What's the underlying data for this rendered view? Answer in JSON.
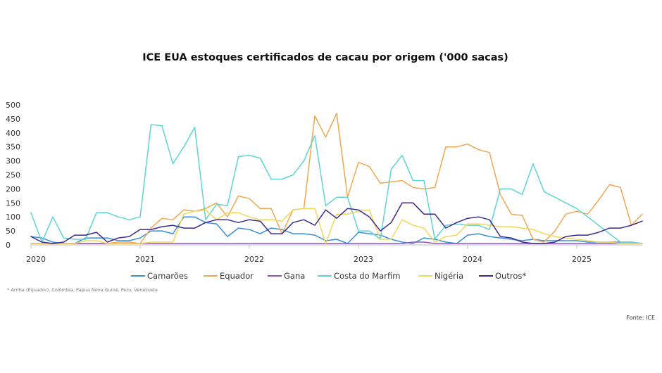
{
  "chart_data": {
    "type": "line",
    "title": "ICE EUA estoques certificados de cacau por origem ('000 sacas)",
    "xlabel": "",
    "ylabel": "",
    "ylim": [
      0,
      500
    ],
    "yticks": [
      0,
      50,
      100,
      150,
      200,
      250,
      300,
      350,
      400,
      450,
      500
    ],
    "xlim": [
      2020.0,
      2025.6
    ],
    "xticks": [
      2020,
      2021,
      2022,
      2023,
      2024,
      2025
    ],
    "xtick_labels": [
      "2020",
      "2021",
      "2022",
      "2023",
      "2024",
      "2025"
    ],
    "grid": false,
    "legend_position": "bottom",
    "series": [
      {
        "name": "Camarões",
        "color": "#3a8fd9",
        "x": [
          2020.0,
          2020.1,
          2020.2,
          2020.3,
          2020.4,
          2020.5,
          2020.6,
          2020.7,
          2020.8,
          2020.9,
          2021.0,
          2021.1,
          2021.2,
          2021.3,
          2021.4,
          2021.5,
          2021.6,
          2021.7,
          2021.8,
          2021.9,
          2022.0,
          2022.1,
          2022.2,
          2022.3,
          2022.4,
          2022.5,
          2022.6,
          2022.7,
          2022.8,
          2022.9,
          2023.0,
          2023.1,
          2023.2,
          2023.3,
          2023.4,
          2023.5,
          2023.6,
          2023.7,
          2023.8,
          2023.9,
          2024.0,
          2024.1,
          2024.2,
          2024.3,
          2024.4,
          2024.5,
          2024.6,
          2024.7,
          2024.8,
          2024.9,
          2025.0,
          2025.1,
          2025.2,
          2025.3,
          2025.4,
          2025.5,
          2025.6
        ],
        "values": [
          30,
          25,
          10,
          5,
          5,
          25,
          25,
          25,
          15,
          15,
          25,
          50,
          50,
          40,
          100,
          100,
          80,
          75,
          30,
          60,
          55,
          40,
          60,
          55,
          40,
          40,
          35,
          15,
          20,
          5,
          45,
          40,
          35,
          20,
          10,
          5,
          25,
          20,
          10,
          5,
          35,
          40,
          30,
          25,
          20,
          15,
          20,
          15,
          15,
          15,
          15,
          10,
          10,
          10,
          10,
          10,
          5
        ]
      },
      {
        "name": "Equador",
        "color": "#f0a752",
        "x": [
          2020.0,
          2020.1,
          2020.2,
          2020.3,
          2020.4,
          2020.5,
          2020.6,
          2020.7,
          2020.8,
          2020.9,
          2021.0,
          2021.1,
          2021.2,
          2021.3,
          2021.4,
          2021.5,
          2021.6,
          2021.7,
          2021.8,
          2021.9,
          2022.0,
          2022.1,
          2022.2,
          2022.3,
          2022.4,
          2022.5,
          2022.6,
          2022.7,
          2022.8,
          2022.9,
          2023.0,
          2023.1,
          2023.2,
          2023.3,
          2023.4,
          2023.5,
          2023.6,
          2023.7,
          2023.8,
          2023.9,
          2024.0,
          2024.1,
          2024.2,
          2024.3,
          2024.4,
          2024.5,
          2024.6,
          2024.7,
          2024.8,
          2024.9,
          2025.0,
          2025.1,
          2025.2,
          2025.3,
          2025.4,
          2025.5,
          2025.6
        ],
        "values": [
          5,
          5,
          5,
          5,
          5,
          5,
          5,
          5,
          10,
          10,
          5,
          60,
          95,
          90,
          125,
          120,
          130,
          150,
          100,
          175,
          165,
          130,
          130,
          40,
          125,
          130,
          460,
          385,
          470,
          170,
          295,
          280,
          220,
          225,
          230,
          205,
          200,
          205,
          350,
          350,
          360,
          340,
          330,
          180,
          110,
          105,
          20,
          10,
          50,
          110,
          120,
          110,
          160,
          215,
          205,
          70,
          110
        ]
      },
      {
        "name": "Gana",
        "color": "#8a56c2",
        "x": [
          2020.0,
          2020.1,
          2020.2,
          2020.3,
          2020.4,
          2020.5,
          2020.6,
          2020.7,
          2020.8,
          2020.9,
          2021.0,
          2021.1,
          2021.2,
          2021.3,
          2021.4,
          2021.5,
          2021.6,
          2021.7,
          2021.8,
          2021.9,
          2022.0,
          2022.1,
          2022.2,
          2022.3,
          2022.4,
          2022.5,
          2022.6,
          2022.7,
          2022.8,
          2022.9,
          2023.0,
          2023.1,
          2023.2,
          2023.3,
          2023.4,
          2023.5,
          2023.6,
          2023.7,
          2023.8,
          2023.9,
          2024.0,
          2024.1,
          2024.2,
          2024.3,
          2024.4,
          2024.5,
          2024.6,
          2024.7,
          2024.8,
          2024.9,
          2025.0,
          2025.1,
          2025.2,
          2025.3,
          2025.4,
          2025.5,
          2025.6
        ],
        "values": [
          5,
          5,
          5,
          5,
          5,
          5,
          5,
          5,
          5,
          5,
          5,
          5,
          5,
          5,
          5,
          5,
          5,
          5,
          5,
          5,
          5,
          5,
          5,
          5,
          5,
          5,
          5,
          5,
          5,
          5,
          5,
          5,
          5,
          5,
          5,
          10,
          10,
          5,
          5,
          5,
          5,
          5,
          5,
          5,
          5,
          5,
          5,
          5,
          5,
          5,
          5,
          5,
          5,
          5,
          5,
          5,
          5
        ]
      },
      {
        "name": "Costa do Marfim",
        "color": "#5fd3d6",
        "x": [
          2020.0,
          2020.1,
          2020.2,
          2020.3,
          2020.4,
          2020.5,
          2020.6,
          2020.7,
          2020.8,
          2020.9,
          2021.0,
          2021.1,
          2021.2,
          2021.3,
          2021.4,
          2021.5,
          2021.6,
          2021.7,
          2021.8,
          2021.9,
          2022.0,
          2022.1,
          2022.2,
          2022.3,
          2022.4,
          2022.5,
          2022.6,
          2022.7,
          2022.8,
          2022.9,
          2023.0,
          2023.1,
          2023.2,
          2023.3,
          2023.4,
          2023.5,
          2023.6,
          2023.7,
          2023.8,
          2023.9,
          2024.0,
          2024.1,
          2024.2,
          2024.3,
          2024.4,
          2024.5,
          2024.6,
          2024.7,
          2024.8,
          2024.9,
          2025.0,
          2025.1,
          2025.2,
          2025.3,
          2025.4,
          2025.5,
          2025.6
        ],
        "values": [
          115,
          10,
          100,
          25,
          20,
          20,
          115,
          115,
          100,
          90,
          100,
          430,
          425,
          290,
          350,
          420,
          90,
          145,
          140,
          315,
          320,
          310,
          235,
          235,
          250,
          300,
          390,
          140,
          170,
          170,
          50,
          50,
          20,
          270,
          320,
          230,
          230,
          20,
          70,
          75,
          70,
          70,
          55,
          200,
          200,
          180,
          290,
          190,
          170,
          150,
          130,
          100,
          70,
          40,
          10,
          10,
          5
        ]
      },
      {
        "name": "Nigéria",
        "color": "#f5d65a",
        "x": [
          2020.0,
          2020.1,
          2020.2,
          2020.3,
          2020.4,
          2020.5,
          2020.6,
          2020.7,
          2020.8,
          2020.9,
          2021.0,
          2021.1,
          2021.2,
          2021.3,
          2021.4,
          2021.5,
          2021.6,
          2021.7,
          2021.8,
          2021.9,
          2022.0,
          2022.1,
          2022.2,
          2022.3,
          2022.4,
          2022.5,
          2022.6,
          2022.7,
          2022.8,
          2022.9,
          2023.0,
          2023.1,
          2023.2,
          2023.3,
          2023.4,
          2023.5,
          2023.6,
          2023.7,
          2023.8,
          2023.9,
          2024.0,
          2024.1,
          2024.2,
          2024.3,
          2024.4,
          2024.5,
          2024.6,
          2024.7,
          2024.8,
          2024.9,
          2025.0,
          2025.1,
          2025.2,
          2025.3,
          2025.4,
          2025.5,
          2025.6
        ],
        "values": [
          5,
          5,
          5,
          5,
          5,
          15,
          15,
          5,
          5,
          5,
          5,
          10,
          10,
          10,
          110,
          120,
          125,
          90,
          115,
          115,
          100,
          90,
          90,
          85,
          125,
          130,
          130,
          5,
          110,
          110,
          120,
          125,
          20,
          20,
          90,
          70,
          60,
          10,
          30,
          35,
          75,
          75,
          70,
          65,
          65,
          60,
          55,
          40,
          30,
          25,
          20,
          15,
          10,
          10,
          5,
          5,
          5
        ]
      },
      {
        "name": "Outros*",
        "color": "#3b2b8f",
        "x": [
          2020.0,
          2020.1,
          2020.2,
          2020.3,
          2020.4,
          2020.5,
          2020.6,
          2020.7,
          2020.8,
          2020.9,
          2021.0,
          2021.1,
          2021.2,
          2021.3,
          2021.4,
          2021.5,
          2021.6,
          2021.7,
          2021.8,
          2021.9,
          2022.0,
          2022.1,
          2022.2,
          2022.3,
          2022.4,
          2022.5,
          2022.6,
          2022.7,
          2022.8,
          2022.9,
          2023.0,
          2023.1,
          2023.2,
          2023.3,
          2023.4,
          2023.5,
          2023.6,
          2023.7,
          2023.8,
          2023.9,
          2024.0,
          2024.1,
          2024.2,
          2024.3,
          2024.4,
          2024.5,
          2024.6,
          2024.7,
          2024.8,
          2024.9,
          2025.0,
          2025.1,
          2025.2,
          2025.3,
          2025.4,
          2025.5,
          2025.6
        ],
        "values": [
          30,
          10,
          5,
          10,
          35,
          35,
          45,
          10,
          25,
          30,
          55,
          55,
          65,
          70,
          60,
          60,
          80,
          90,
          90,
          80,
          90,
          85,
          40,
          40,
          80,
          90,
          70,
          125,
          95,
          130,
          125,
          100,
          50,
          80,
          150,
          150,
          110,
          110,
          60,
          80,
          95,
          100,
          90,
          30,
          25,
          10,
          5,
          5,
          10,
          30,
          35,
          35,
          45,
          60,
          60,
          70,
          85
        ]
      }
    ],
    "footnote": "* Arriba (Equador), Colômbia, Papua Nova Guiné, Peru, Venezuela",
    "source": "Fonte: ICE"
  }
}
